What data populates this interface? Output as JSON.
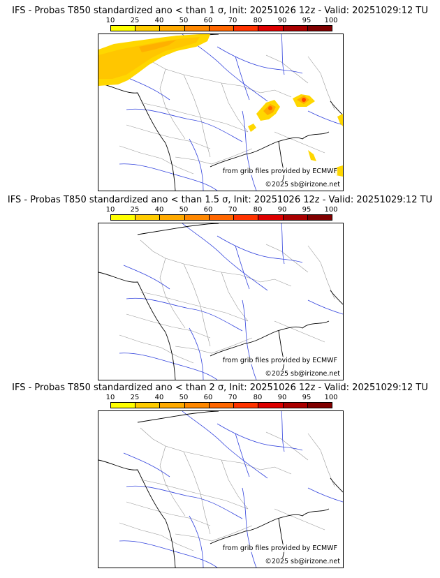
{
  "scale": {
    "labels": [
      "10",
      "25",
      "40",
      "50",
      "60",
      "70",
      "80",
      "90",
      "95",
      "100"
    ],
    "colors": [
      "#ffff00",
      "#ffcc00",
      "#ffaa00",
      "#ff8800",
      "#ff6600",
      "#ff3300",
      "#dd0000",
      "#aa0000",
      "#800000"
    ]
  },
  "panels": [
    {
      "title": "IFS - Probas T850  standardized ano < than 1 σ, Init: 20251026 12z - Valid: 20251029:12 TU",
      "source_credit": "from grib files provided by ECMWF",
      "copyright": "©2025 sb@irizone.net"
    },
    {
      "title": "IFS - Probas T850  standardized ano < than 1.5 σ, Init: 20251026 12z - Valid: 20251029:12 TU",
      "source_credit": "from grib files provided by ECMWF",
      "copyright": "©2025 sb@irizone.net"
    },
    {
      "title": "IFS - Probas T850  standardized ano < than 2 σ, Init: 20251026 12z - Valid: 20251029:12 TU",
      "source_credit": "from grib files provided by ECMWF",
      "copyright": "©2025 sb@irizone.net"
    }
  ],
  "colors": {
    "coast": "#000000",
    "rivers": "#3344dd",
    "borders": "#999999"
  }
}
